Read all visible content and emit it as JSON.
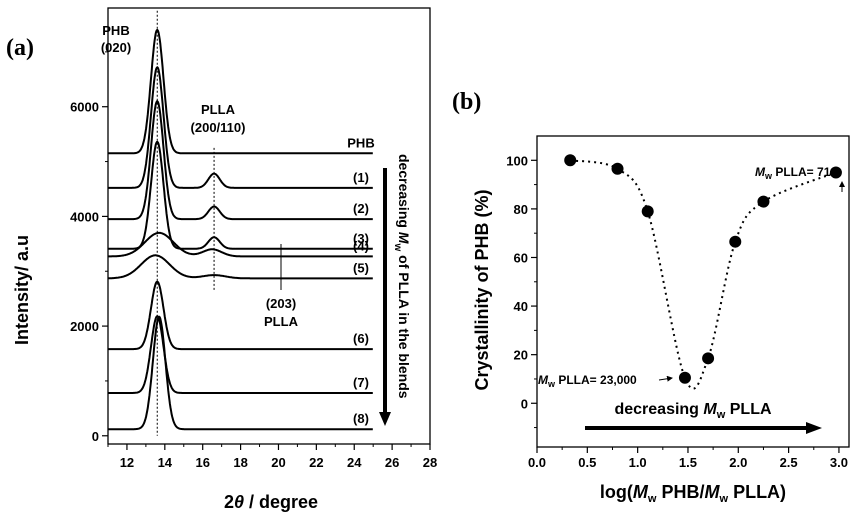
{
  "chart_data": [
    {
      "panel": "(a)",
      "type": "line",
      "ylabel": "Intensity/ a.u",
      "xlabel_parts": [
        "2",
        "θ",
        " / degree"
      ],
      "xlim": [
        11,
        28
      ],
      "ylim": [
        -150,
        7800
      ],
      "xticks": [
        12,
        14,
        16,
        18,
        20,
        22,
        24,
        26,
        28
      ],
      "yticks": [
        0,
        2000,
        4000,
        6000
      ],
      "x_start": 11.0,
      "x_end": 25.0,
      "series": [
        {
          "name": "PHB",
          "baseline": 5150,
          "peaks": [
            {
              "x": 13.6,
              "h": 2250,
              "w": 0.33
            }
          ]
        },
        {
          "name": "(1)",
          "baseline": 4520,
          "peaks": [
            {
              "x": 13.6,
              "h": 2200,
              "w": 0.33
            },
            {
              "x": 16.6,
              "h": 260,
              "w": 0.3
            }
          ]
        },
        {
          "name": "(2)",
          "baseline": 3950,
          "peaks": [
            {
              "x": 13.6,
              "h": 2150,
              "w": 0.33
            },
            {
              "x": 16.6,
              "h": 230,
              "w": 0.3
            }
          ]
        },
        {
          "name": "(3)",
          "baseline": 3410,
          "peaks": [
            {
              "x": 13.6,
              "h": 1950,
              "w": 0.33
            },
            {
              "x": 16.6,
              "h": 210,
              "w": 0.3
            }
          ]
        },
        {
          "name": "(4)",
          "baseline": 3270,
          "peaks": [
            {
              "x": 13.7,
              "h": 430,
              "w": 0.75
            },
            {
              "x": 16.5,
              "h": 130,
              "w": 0.5
            }
          ]
        },
        {
          "name": "(5)",
          "baseline": 2870,
          "peaks": [
            {
              "x": 13.5,
              "h": 420,
              "w": 0.75
            },
            {
              "x": 16.6,
              "h": 60,
              "w": 0.6
            }
          ]
        },
        {
          "name": "(6)",
          "baseline": 1580,
          "peaks": [
            {
              "x": 13.6,
              "h": 1230,
              "w": 0.33
            }
          ]
        },
        {
          "name": "(7)",
          "baseline": 780,
          "peaks": [
            {
              "x": 13.6,
              "h": 1400,
              "w": 0.33
            }
          ]
        },
        {
          "name": "(8)",
          "baseline": 120,
          "peaks": [
            {
              "x": 13.7,
              "h": 2050,
              "w": 0.33
            }
          ]
        }
      ],
      "reference_lines": [
        {
          "x": 13.6,
          "y_from": 0,
          "y_to": 7750
        },
        {
          "x": 16.6,
          "y_from": 2650,
          "y_to": 5250
        }
      ],
      "annotations": {
        "phb_020": [
          "PHB",
          "(020)"
        ],
        "plla_200_110": [
          "PLLA",
          "(200/110)"
        ],
        "plla_203": [
          "(203)",
          "PLLA"
        ],
        "arrow_text_before": "decreasing ",
        "arrow_text_M": "M",
        "arrow_text_w": "w",
        "arrow_text_after": " of PLLA in the blends"
      }
    },
    {
      "panel": "(b)",
      "type": "scatter",
      "ylabel": "Crystallinity of PHB (%)",
      "xlabel_parts": [
        "log(",
        "M",
        "w",
        " PHB/",
        "M",
        "w",
        " PLLA)"
      ],
      "xlim": [
        0,
        3.1
      ],
      "ylim": [
        -18,
        110
      ],
      "xticks": [
        0.0,
        0.5,
        1.0,
        1.5,
        2.0,
        2.5,
        3.0
      ],
      "yticks": [
        0,
        20,
        40,
        60,
        80,
        100
      ],
      "points": [
        {
          "x": 0.33,
          "y": 100
        },
        {
          "x": 0.8,
          "y": 96.5
        },
        {
          "x": 1.1,
          "y": 79
        },
        {
          "x": 1.47,
          "y": 10.5
        },
        {
          "x": 1.7,
          "y": 18.5
        },
        {
          "x": 1.97,
          "y": 66.5
        },
        {
          "x": 2.25,
          "y": 83
        },
        {
          "x": 2.97,
          "y": 95
        }
      ],
      "annotations": {
        "right_label": [
          "M",
          "w",
          " PLLA= 710"
        ],
        "left_label": [
          "M",
          "w",
          " PLLA= 23,000"
        ],
        "bottom_arrow": [
          "decreasing ",
          "M",
          "w",
          " PLLA"
        ]
      }
    }
  ]
}
